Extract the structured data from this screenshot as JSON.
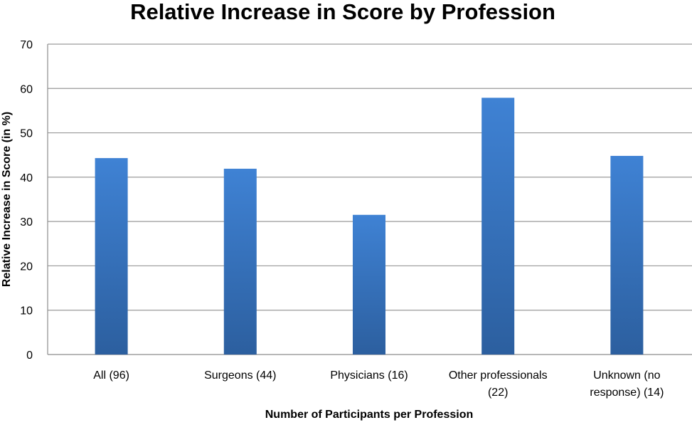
{
  "chart_data": {
    "type": "bar",
    "title": "Relative Increase in Score by Profession",
    "xlabel": "Number of Participants per Profession",
    "ylabel": "Relative Increase in Score (in %)",
    "categories": [
      [
        "All (96)"
      ],
      [
        "Surgeons (44)"
      ],
      [
        "Physicians (16)"
      ],
      [
        "Other professionals",
        "(22)"
      ],
      [
        "Unknown (no",
        "response) (14)"
      ]
    ],
    "values": [
      44.3,
      41.9,
      31.5,
      57.9,
      44.8
    ],
    "ylim": [
      0,
      70
    ],
    "yticks": [
      0,
      10,
      20,
      30,
      40,
      50,
      60,
      70
    ],
    "grid": true,
    "legend": "none",
    "bar_color_top": "#3f82d4",
    "bar_color_bottom": "#2c5f9f",
    "grid_color": "#9a9a9a",
    "axis_color": "#8c8c8c"
  }
}
